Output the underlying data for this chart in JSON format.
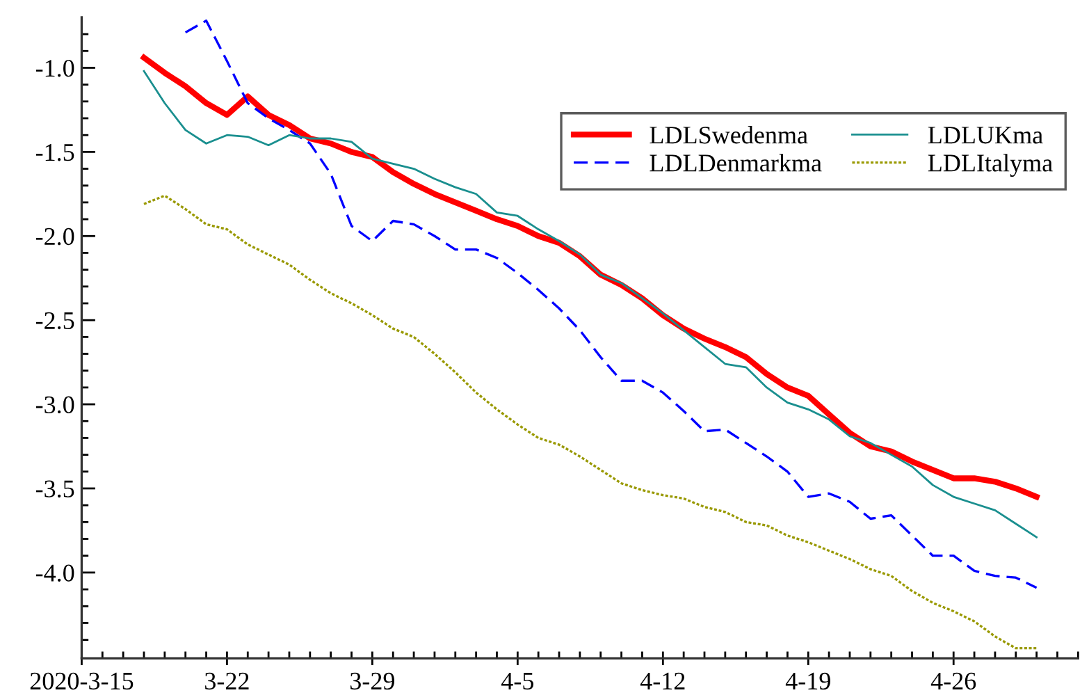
{
  "chart_data": {
    "type": "line",
    "legend": "top right",
    "grid": false,
    "marker": "none",
    "x": [
      "2020-03-18",
      "2020-03-19",
      "2020-03-20",
      "2020-03-21",
      "2020-03-22",
      "2020-03-23",
      "2020-03-24",
      "2020-03-25",
      "2020-03-26",
      "2020-03-27",
      "2020-03-28",
      "2020-03-29",
      "2020-03-30",
      "2020-03-31",
      "2020-04-01",
      "2020-04-02",
      "2020-04-03",
      "2020-04-04",
      "2020-04-05",
      "2020-04-06",
      "2020-04-07",
      "2020-04-08",
      "2020-04-09",
      "2020-04-10",
      "2020-04-11",
      "2020-04-12",
      "2020-04-13",
      "2020-04-14",
      "2020-04-15",
      "2020-04-16",
      "2020-04-17",
      "2020-04-18",
      "2020-04-19",
      "2020-04-20",
      "2020-04-21",
      "2020-04-22",
      "2020-04-23",
      "2020-04-24",
      "2020-04-25",
      "2020-04-26",
      "2020-04-27",
      "2020-04-28",
      "2020-04-29",
      "2020-04-30"
    ],
    "series": [
      {
        "name": "LDLSwedenma",
        "color": "#ff0000",
        "line_style": "solid",
        "values": [
          -0.94,
          -1.03,
          -1.11,
          -1.21,
          -1.28,
          -1.17,
          -1.28,
          -1.34,
          -1.42,
          -1.45,
          -1.5,
          -1.53,
          -1.62,
          -1.69,
          -1.75,
          -1.8,
          -1.85,
          -1.9,
          -1.94,
          -2.0,
          -2.04,
          -2.12,
          -2.23,
          -2.29,
          -2.37,
          -2.47,
          -2.55,
          -2.61,
          -2.66,
          -2.72,
          -2.82,
          -2.9,
          -2.95,
          -3.06,
          -3.17,
          -3.25,
          -3.28,
          -3.34,
          -3.39,
          -3.44,
          -3.44,
          -3.46,
          -3.5,
          -3.55
        ]
      },
      {
        "name": "LDLDenmarkma",
        "color": "#0000ff",
        "line_style": "dashed",
        "values": [
          null,
          null,
          -0.79,
          -0.72,
          -0.96,
          -1.21,
          -1.3,
          -1.37,
          -1.45,
          -1.63,
          -1.94,
          -2.03,
          -1.91,
          -1.93,
          -2.0,
          -2.08,
          -2.08,
          -2.13,
          -2.22,
          -2.32,
          -2.43,
          -2.56,
          -2.72,
          -2.86,
          -2.86,
          -2.93,
          -3.04,
          -3.16,
          -3.15,
          -3.23,
          -3.31,
          -3.4,
          -3.55,
          -3.53,
          -3.58,
          -3.68,
          -3.66,
          -3.78,
          -3.9,
          -3.9,
          -3.99,
          -4.02,
          -4.03,
          -4.09
        ]
      },
      {
        "name": "LDLUKma",
        "color": "#1a8f8f",
        "line_style": "solid",
        "values": [
          -1.02,
          -1.21,
          -1.37,
          -1.45,
          -1.4,
          -1.41,
          -1.46,
          -1.4,
          -1.42,
          -1.42,
          -1.44,
          -1.54,
          -1.57,
          -1.6,
          -1.66,
          -1.71,
          -1.75,
          -1.86,
          -1.88,
          -1.96,
          -2.03,
          -2.11,
          -2.23,
          -2.28,
          -2.37,
          -2.46,
          -2.56,
          -2.66,
          -2.76,
          -2.78,
          -2.9,
          -2.99,
          -3.03,
          -3.09,
          -3.19,
          -3.23,
          -3.3,
          -3.37,
          -3.48,
          -3.55,
          -3.59,
          -3.63,
          -3.71,
          -3.79
        ]
      },
      {
        "name": "LDLItalyma",
        "color": "#999900",
        "line_style": "dotted",
        "values": [
          -1.81,
          -1.76,
          -1.84,
          -1.93,
          -1.96,
          -2.05,
          -2.11,
          -2.17,
          -2.26,
          -2.34,
          -2.4,
          -2.47,
          -2.55,
          -2.6,
          -2.7,
          -2.81,
          -2.93,
          -3.03,
          -3.12,
          -3.2,
          -3.24,
          -3.31,
          -3.39,
          -3.47,
          -3.51,
          -3.54,
          -3.56,
          -3.61,
          -3.64,
          -3.7,
          -3.72,
          -3.78,
          -3.82,
          -3.87,
          -3.92,
          -3.98,
          -4.02,
          -4.11,
          -4.18,
          -4.23,
          -4.29,
          -4.38,
          -4.45,
          -4.45
        ]
      }
    ],
    "xlim": [
      "2020-03-15",
      "2020-05-02"
    ],
    "xticks": [
      {
        "value": "2020-03-15",
        "label": "2020-3-15"
      },
      {
        "value": "2020-03-22",
        "label": "3-22"
      },
      {
        "value": "2020-03-29",
        "label": "3-29"
      },
      {
        "value": "2020-04-05",
        "label": "4-5"
      },
      {
        "value": "2020-04-12",
        "label": "4-12"
      },
      {
        "value": "2020-04-19",
        "label": "4-19"
      },
      {
        "value": "2020-04-26",
        "label": "4-26"
      },
      {
        "value": "2020-03-16",
        "label": null
      },
      {
        "value": "2020-03-17",
        "label": null
      },
      {
        "value": "2020-03-18",
        "label": null
      },
      {
        "value": "2020-03-19",
        "label": null
      },
      {
        "value": "2020-03-20",
        "label": null
      },
      {
        "value": "2020-03-21",
        "label": null
      },
      {
        "value": "2020-03-23",
        "label": null
      },
      {
        "value": "2020-03-24",
        "label": null
      },
      {
        "value": "2020-03-25",
        "label": null
      },
      {
        "value": "2020-03-26",
        "label": null
      },
      {
        "value": "2020-03-27",
        "label": null
      },
      {
        "value": "2020-03-28",
        "label": null
      },
      {
        "value": "2020-03-30",
        "label": null
      },
      {
        "value": "2020-03-31",
        "label": null
      },
      {
        "value": "2020-04-01",
        "label": null
      },
      {
        "value": "2020-04-02",
        "label": null
      },
      {
        "value": "2020-04-03",
        "label": null
      },
      {
        "value": "2020-04-04",
        "label": null
      },
      {
        "value": "2020-04-06",
        "label": null
      },
      {
        "value": "2020-04-07",
        "label": null
      },
      {
        "value": "2020-04-08",
        "label": null
      },
      {
        "value": "2020-04-09",
        "label": null
      },
      {
        "value": "2020-04-10",
        "label": null
      },
      {
        "value": "2020-04-11",
        "label": null
      },
      {
        "value": "2020-04-13",
        "label": null
      },
      {
        "value": "2020-04-14",
        "label": null
      },
      {
        "value": "2020-04-15",
        "label": null
      },
      {
        "value": "2020-04-16",
        "label": null
      },
      {
        "value": "2020-04-17",
        "label": null
      },
      {
        "value": "2020-04-18",
        "label": null
      },
      {
        "value": "2020-04-20",
        "label": null
      },
      {
        "value": "2020-04-21",
        "label": null
      },
      {
        "value": "2020-04-22",
        "label": null
      },
      {
        "value": "2020-04-23",
        "label": null
      },
      {
        "value": "2020-04-24",
        "label": null
      },
      {
        "value": "2020-04-25",
        "label": null
      },
      {
        "value": "2020-04-27",
        "label": null
      },
      {
        "value": "2020-04-28",
        "label": null
      },
      {
        "value": "2020-04-29",
        "label": null
      },
      {
        "value": "2020-04-30",
        "label": null
      },
      {
        "value": "2020-05-01",
        "label": null
      },
      {
        "value": "2020-05-02",
        "label": null
      }
    ],
    "ylim": [
      -4.51,
      -0.7
    ],
    "yticks": [
      {
        "value": -1.0,
        "label": "-1.0"
      },
      {
        "value": -1.5,
        "label": "-1.5"
      },
      {
        "value": -2.0,
        "label": "-2.0"
      },
      {
        "value": -2.5,
        "label": "-2.5"
      },
      {
        "value": -3.0,
        "label": "-3.0"
      },
      {
        "value": -3.5,
        "label": "-3.5"
      },
      {
        "value": -4.0,
        "label": "-4.0"
      },
      {
        "value": -0.8,
        "label": null
      },
      {
        "value": -0.9,
        "label": null
      },
      {
        "value": -1.1,
        "label": null
      },
      {
        "value": -1.2,
        "label": null
      },
      {
        "value": -1.3,
        "label": null
      },
      {
        "value": -1.4,
        "label": null
      },
      {
        "value": -1.6,
        "label": null
      },
      {
        "value": -1.7,
        "label": null
      },
      {
        "value": -1.8,
        "label": null
      },
      {
        "value": -1.9,
        "label": null
      },
      {
        "value": -2.1,
        "label": null
      },
      {
        "value": -2.2,
        "label": null
      },
      {
        "value": -2.3,
        "label": null
      },
      {
        "value": -2.4,
        "label": null
      },
      {
        "value": -2.6,
        "label": null
      },
      {
        "value": -2.7,
        "label": null
      },
      {
        "value": -2.8,
        "label": null
      },
      {
        "value": -2.9,
        "label": null
      },
      {
        "value": -3.1,
        "label": null
      },
      {
        "value": -3.2,
        "label": null
      },
      {
        "value": -3.3,
        "label": null
      },
      {
        "value": -3.4,
        "label": null
      },
      {
        "value": -3.6,
        "label": null
      },
      {
        "value": -3.7,
        "label": null
      },
      {
        "value": -3.8,
        "label": null
      },
      {
        "value": -3.9,
        "label": null
      },
      {
        "value": -4.1,
        "label": null
      },
      {
        "value": -4.2,
        "label": null
      },
      {
        "value": -4.3,
        "label": null
      },
      {
        "value": -4.4,
        "label": null
      }
    ]
  }
}
